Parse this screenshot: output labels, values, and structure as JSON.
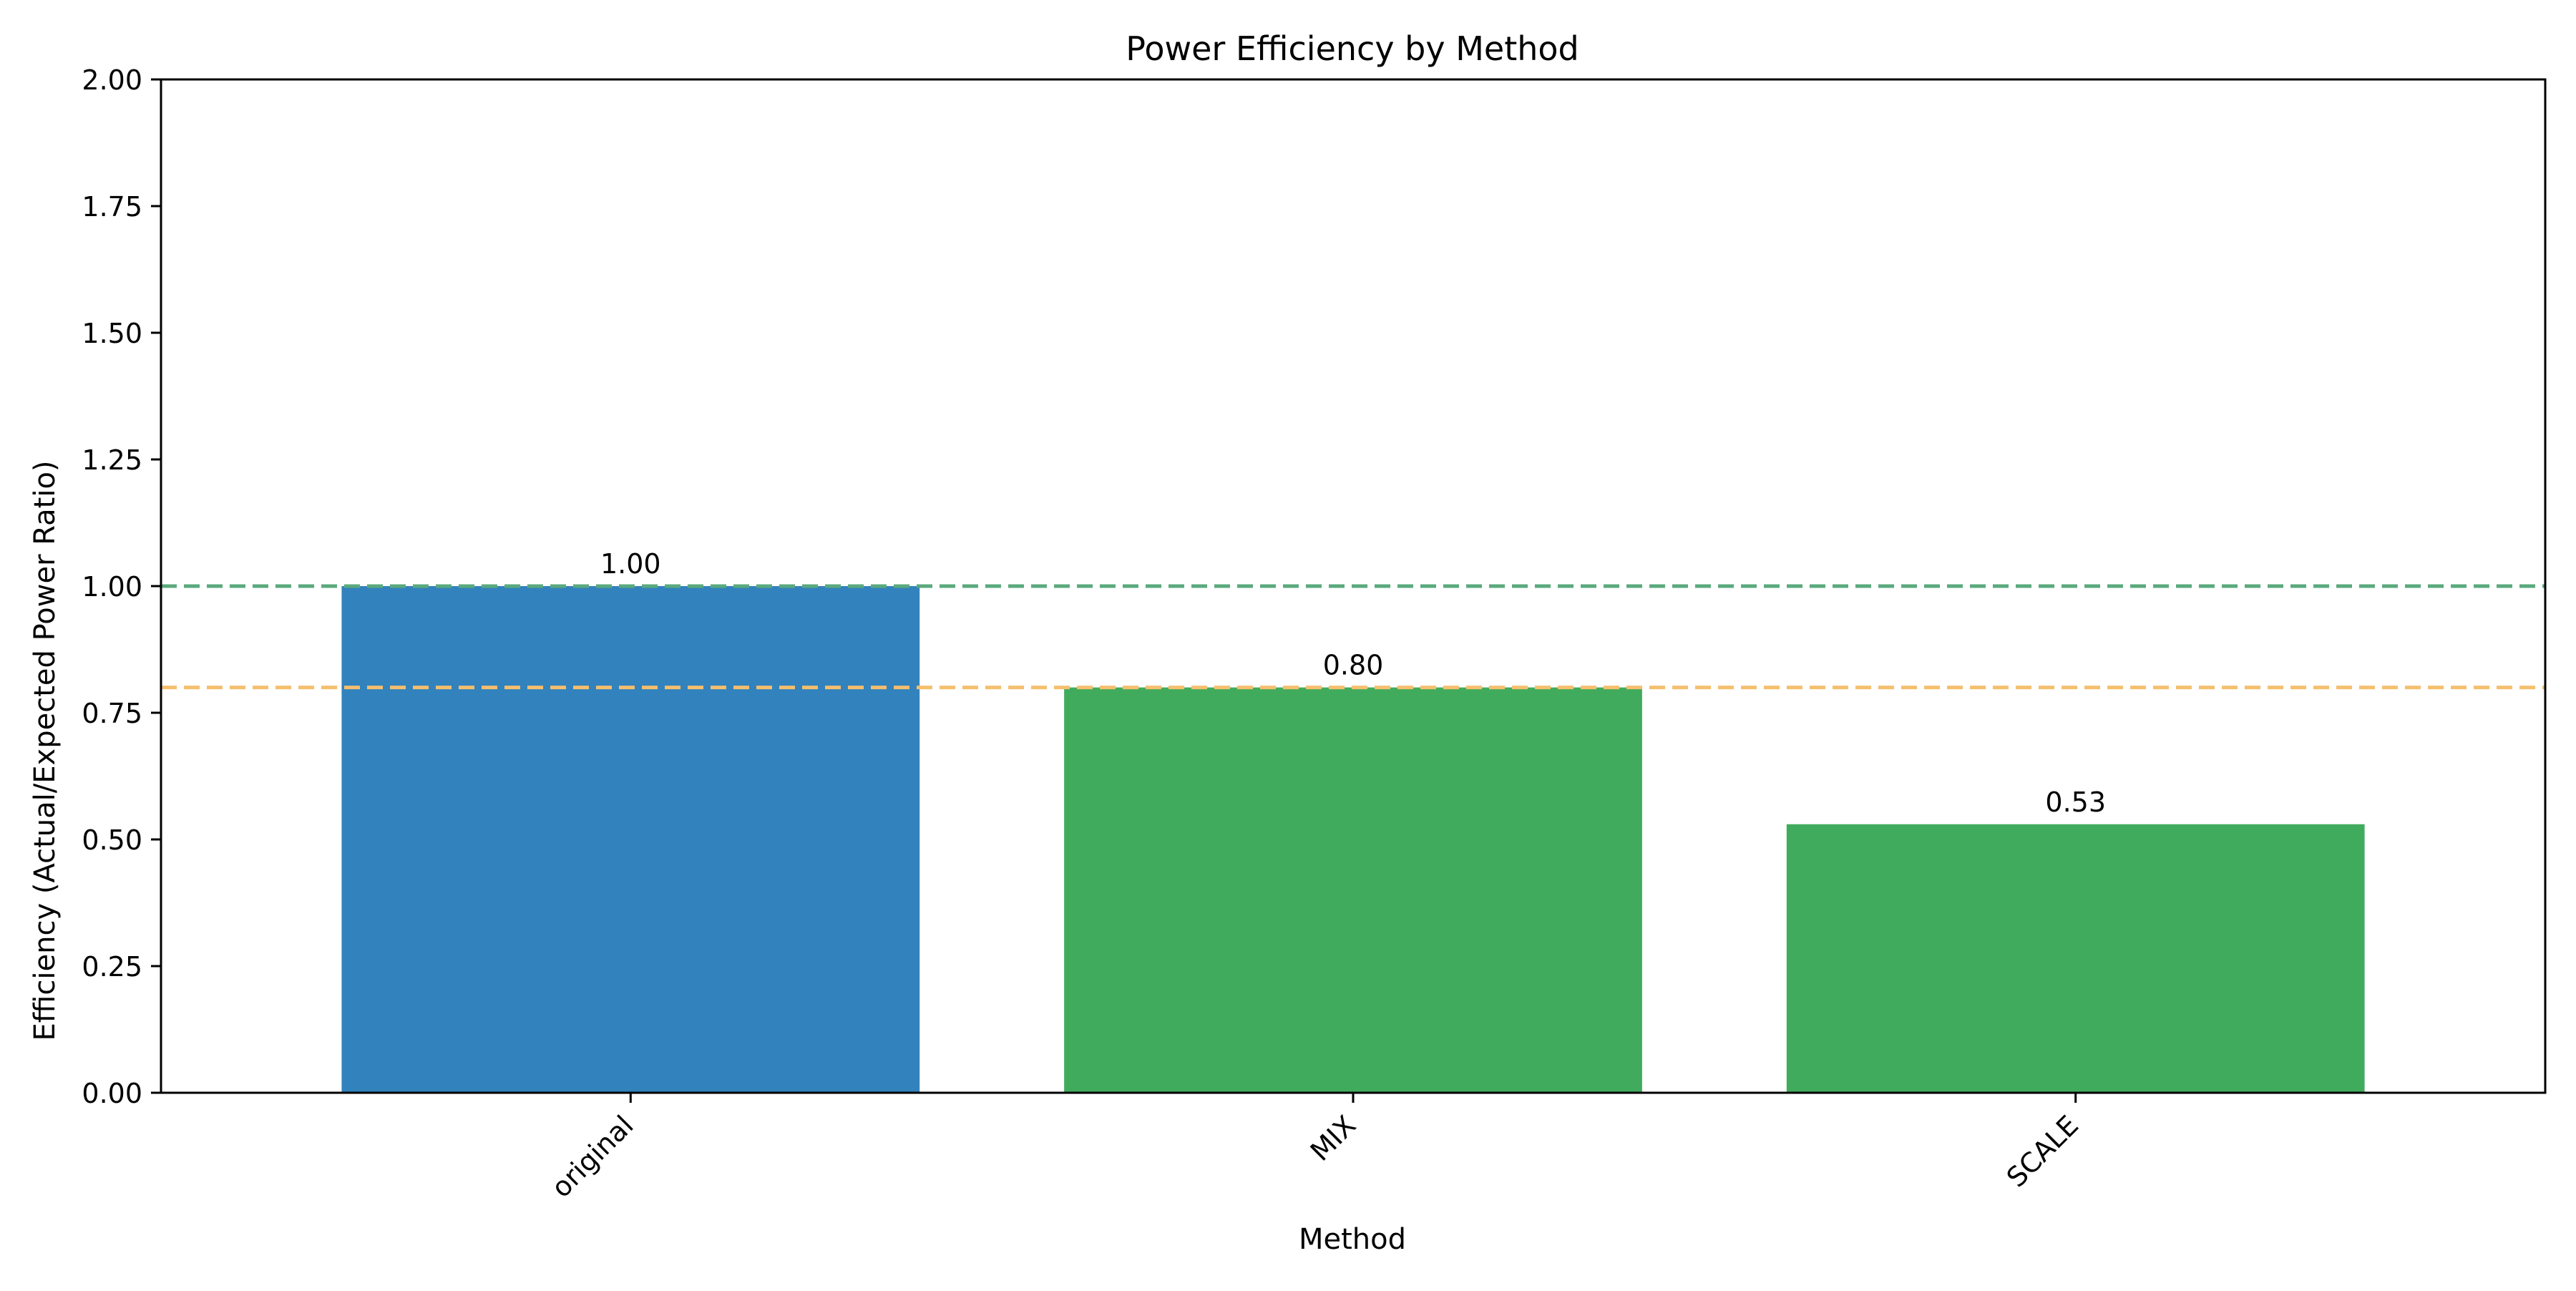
{
  "chart_data": {
    "type": "bar",
    "title": "Power Efficiency by Method",
    "xlabel": "Method",
    "ylabel": "Efficiency (Actual/Expected Power Ratio)",
    "categories": [
      "original",
      "MIX",
      "SCALE"
    ],
    "values": [
      1.0,
      0.8,
      0.53
    ],
    "data_labels": [
      "1.00",
      "0.80",
      "0.53"
    ],
    "bar_colors": [
      "#3282bd",
      "#41ab5d",
      "#41ab5d"
    ],
    "ylim": [
      0,
      2.0
    ],
    "yticks": [
      0,
      0.25,
      0.5,
      0.75,
      1.0,
      1.25,
      1.5,
      1.75,
      2.0
    ],
    "ytick_labels": [
      "0.00",
      "0.25",
      "0.50",
      "0.75",
      "1.00",
      "1.25",
      "1.50",
      "1.75",
      "2.00"
    ],
    "reference_lines": [
      {
        "y": 1.0,
        "color": "#5aa97c",
        "style": "dashed"
      },
      {
        "y": 0.8,
        "color": "#f5bf6e",
        "style": "dashed"
      }
    ],
    "grid": false,
    "legend": "none"
  }
}
